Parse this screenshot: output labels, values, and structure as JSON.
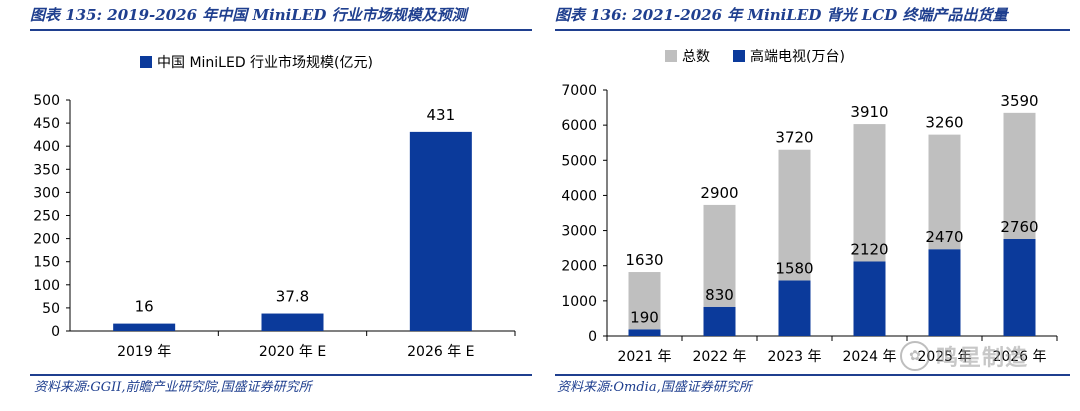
{
  "left": {
    "figure_title": "图表 135:  2019-2026 年中国 MiniLED 行业市场规模及预测",
    "source": "资料来源:GGII,前瞻产业研究院,国盛证券研究所"
  },
  "right": {
    "figure_title": "图表 136:  2021-2026 年 MiniLED 背光 LCD 终端产品出货量",
    "source": "资料来源:Omdia,国盛证券研究所"
  },
  "watermark": {
    "text": "鸣星制造",
    "icon": "wechat-logo-icon"
  },
  "colors": {
    "brand": "#1f3f8f",
    "bar_blue": "#0b3a9b",
    "bar_gray": "#bfbfbf"
  },
  "chart_data": [
    {
      "type": "bar",
      "categories": [
        "2019 年",
        "2020 年 E",
        "2026 年 E"
      ],
      "series": [
        {
          "name": "中国 MiniLED 行业市场规模(亿元)",
          "values": [
            16,
            37.8,
            431
          ]
        }
      ],
      "value_labels": [
        "16",
        "37.8",
        "431"
      ],
      "ylim": [
        0,
        500
      ],
      "yticks": [
        0,
        50,
        100,
        150,
        200,
        250,
        300,
        350,
        400,
        450,
        500
      ],
      "legend": "top-center",
      "grid": false
    },
    {
      "type": "bar",
      "stacked": true,
      "categories": [
        "2021 年",
        "2022 年",
        "2023 年",
        "2024 年",
        "2025 年",
        "2026 年"
      ],
      "series": [
        {
          "name": "高端电视(万台)",
          "values": [
            190,
            830,
            1580,
            2120,
            2470,
            2760
          ]
        },
        {
          "name": "总数",
          "values": [
            1630,
            2900,
            3720,
            3910,
            3260,
            3590
          ]
        }
      ],
      "ylim": [
        0,
        7000
      ],
      "yticks": [
        0,
        1000,
        2000,
        3000,
        4000,
        5000,
        6000,
        7000
      ],
      "legend": "top-center",
      "grid": false
    }
  ]
}
